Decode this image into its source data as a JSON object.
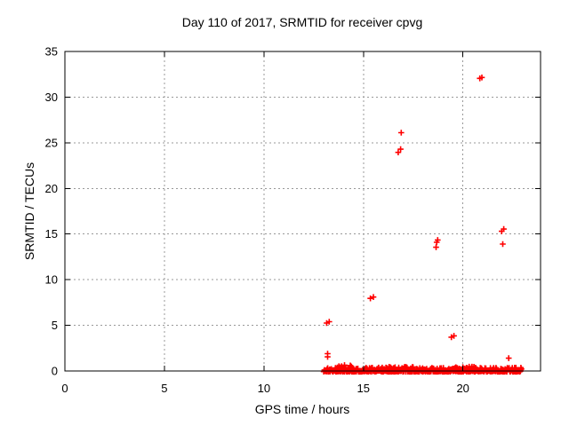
{
  "window": {
    "background_color": "#ffffff"
  },
  "chart_data": {
    "type": "scatter",
    "title": "Day 110 of 2017, SRMTID for receiver cpvg",
    "xlabel": "GPS time / hours",
    "ylabel": "SRMTID / TECUs",
    "xlim": [
      0,
      23.9
    ],
    "ylim": [
      0,
      35
    ],
    "xticks": [
      0,
      5,
      10,
      15,
      20
    ],
    "yticks": [
      0,
      5,
      10,
      15,
      20,
      25,
      30,
      35
    ],
    "grid": "dotted",
    "grid_color": "#999999",
    "border_color": "#000000",
    "marker": "plus",
    "marker_color": "#ff0000",
    "outliers": [
      {
        "x": 13.15,
        "y": 5.25
      },
      {
        "x": 13.28,
        "y": 5.4
      },
      {
        "x": 13.2,
        "y": 1.9
      },
      {
        "x": 13.2,
        "y": 1.55
      },
      {
        "x": 15.35,
        "y": 7.95
      },
      {
        "x": 15.5,
        "y": 8.1
      },
      {
        "x": 16.75,
        "y": 23.95
      },
      {
        "x": 16.87,
        "y": 24.3
      },
      {
        "x": 16.9,
        "y": 26.1
      },
      {
        "x": 18.68,
        "y": 14.1
      },
      {
        "x": 18.73,
        "y": 14.35
      },
      {
        "x": 18.65,
        "y": 13.55
      },
      {
        "x": 19.42,
        "y": 3.7
      },
      {
        "x": 19.55,
        "y": 3.85
      },
      {
        "x": 20.85,
        "y": 32.05
      },
      {
        "x": 20.95,
        "y": 32.15
      },
      {
        "x": 21.95,
        "y": 15.3
      },
      {
        "x": 22.05,
        "y": 15.55
      },
      {
        "x": 22.0,
        "y": 13.9
      },
      {
        "x": 22.3,
        "y": 1.4
      }
    ],
    "baseline_band": {
      "description": "dense cluster of points hugging 0 TECUs",
      "x_start": 13.0,
      "x_end": 22.95,
      "seed": 1337,
      "segments": [
        {
          "x0": 13.0,
          "x1": 13.6,
          "amp": 0.45,
          "n": 25
        },
        {
          "x0": 13.6,
          "x1": 14.6,
          "amp": 0.85,
          "n": 55
        },
        {
          "x0": 14.6,
          "x1": 16.1,
          "amp": 0.45,
          "n": 75
        },
        {
          "x0": 16.1,
          "x1": 17.6,
          "amp": 0.55,
          "n": 80
        },
        {
          "x0": 17.6,
          "x1": 19.6,
          "amp": 0.45,
          "n": 100
        },
        {
          "x0": 19.6,
          "x1": 20.7,
          "amp": 0.55,
          "n": 60
        },
        {
          "x0": 20.7,
          "x1": 22.95,
          "amp": 0.45,
          "n": 110
        }
      ]
    }
  }
}
